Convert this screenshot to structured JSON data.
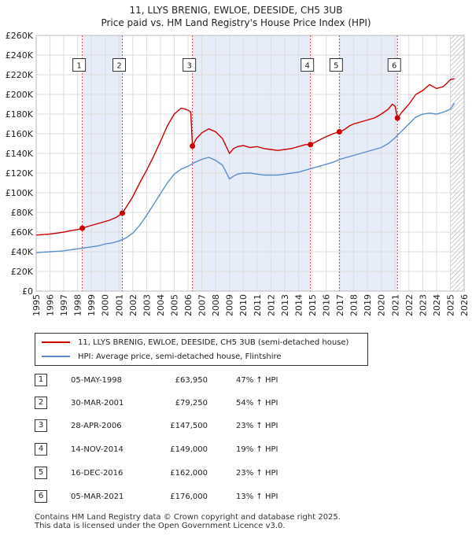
{
  "title_line1": "11, LLYS BRENIG, EWLOE, DEESIDE, CH5 3UB",
  "title_line2": "Price paid vs. HM Land Registry's House Price Index (HPI)",
  "legend": {
    "property_label": "11, LLYS BRENIG, EWLOE, DEESIDE, CH5 3UB (semi-detached house)",
    "hpi_label": "HPI: Average price, semi-detached house, Flintshire"
  },
  "colors": {
    "property": "#cc0000",
    "hpi": "#5b8fcc",
    "shade": "#e6ecf8",
    "marker_line": "#dd4444",
    "grid": "#dddddd",
    "hatch": "#999999"
  },
  "transactions": [
    {
      "num": "1",
      "date": "05-MAY-1998",
      "price": "£63,950",
      "hpi": "47% ↑ HPI"
    },
    {
      "num": "2",
      "date": "30-MAR-2001",
      "price": "£79,250",
      "hpi": "54% ↑ HPI"
    },
    {
      "num": "3",
      "date": "28-APR-2006",
      "price": "£147,500",
      "hpi": "23% ↑ HPI"
    },
    {
      "num": "4",
      "date": "14-NOV-2014",
      "price": "£149,000",
      "hpi": "19% ↑ HPI"
    },
    {
      "num": "5",
      "date": "16-DEC-2016",
      "price": "£162,000",
      "hpi": "23% ↑ HPI"
    },
    {
      "num": "6",
      "date": "05-MAR-2021",
      "price": "£176,000",
      "hpi": "13% ↑ HPI"
    }
  ],
  "footer_line1": "Contains HM Land Registry data © Crown copyright and database right 2025.",
  "footer_line2": "This data is licensed under the Open Government Licence v3.0.",
  "chart_data": {
    "type": "line",
    "xlim": [
      1995,
      2026
    ],
    "ylim": [
      0,
      260000
    ],
    "y_ticks": [
      0,
      20000,
      40000,
      60000,
      80000,
      100000,
      120000,
      140000,
      160000,
      180000,
      200000,
      220000,
      240000,
      260000
    ],
    "y_tick_labels": [
      "£0",
      "£20K",
      "£40K",
      "£60K",
      "£80K",
      "£100K",
      "£120K",
      "£140K",
      "£160K",
      "£180K",
      "£200K",
      "£220K",
      "£240K",
      "£260K"
    ],
    "x_ticks": [
      1995,
      1996,
      1997,
      1998,
      1999,
      2000,
      2001,
      2002,
      2003,
      2004,
      2005,
      2006,
      2007,
      2008,
      2009,
      2010,
      2011,
      2012,
      2013,
      2014,
      2015,
      2016,
      2017,
      2018,
      2019,
      2020,
      2021,
      2022,
      2023,
      2024,
      2025,
      2026
    ],
    "x_tick_labels": [
      "1995",
      "1996",
      "1997",
      "1998",
      "1999",
      "2000",
      "2001",
      "2002",
      "2003",
      "2004",
      "2005",
      "2006",
      "2007",
      "2008",
      "2009",
      "2010",
      "2011",
      "2012",
      "2013",
      "2014",
      "2015",
      "2016",
      "2017",
      "2018",
      "2019",
      "2020",
      "2021",
      "2022",
      "2023",
      "2024",
      "2025",
      "2026"
    ],
    "grid": true,
    "shaded_ranges": [
      [
        1998.34,
        2001.24
      ],
      [
        2006.32,
        2014.87
      ],
      [
        2016.96,
        2021.17
      ]
    ],
    "hatched_from": 2025.0,
    "sales": [
      {
        "label": "1",
        "x": 1998.34,
        "y": 63950
      },
      {
        "label": "2",
        "x": 2001.24,
        "y": 79250
      },
      {
        "label": "3",
        "x": 2006.32,
        "y": 147500
      },
      {
        "label": "4",
        "x": 2014.87,
        "y": 149000
      },
      {
        "label": "5",
        "x": 2016.96,
        "y": 162000
      },
      {
        "label": "6",
        "x": 2021.17,
        "y": 176000
      }
    ],
    "series": [
      {
        "name": "11, LLYS BRENIG, EWLOE, DEESIDE, CH5 3UB (semi-detached house)",
        "x": [
          1995.0,
          1995.5,
          1996.0,
          1996.5,
          1997.0,
          1997.5,
          1998.0,
          1998.34,
          1998.8,
          1999.3,
          1999.8,
          2000.3,
          2000.8,
          2001.24,
          2001.6,
          2002.0,
          2002.5,
          2003.0,
          2003.5,
          2004.0,
          2004.5,
          2005.0,
          2005.5,
          2005.8,
          2006.0,
          2006.2,
          2006.32,
          2006.6,
          2007.0,
          2007.5,
          2008.0,
          2008.5,
          2009.0,
          2009.3,
          2009.6,
          2010.0,
          2010.5,
          2011.0,
          2011.5,
          2012.0,
          2012.5,
          2013.0,
          2013.5,
          2014.0,
          2014.5,
          2014.87,
          2015.3,
          2015.7,
          2016.0,
          2016.5,
          2016.96,
          2017.3,
          2017.7,
          2018.0,
          2018.5,
          2019.0,
          2019.5,
          2020.0,
          2020.5,
          2020.8,
          2021.0,
          2021.17,
          2021.5,
          2022.0,
          2022.5,
          2023.0,
          2023.5,
          2024.0,
          2024.5,
          2024.8,
          2025.0,
          2025.3
        ],
        "y": [
          57000,
          57500,
          58000,
          59000,
          60000,
          61500,
          62500,
          63950,
          66000,
          68000,
          70000,
          72000,
          75000,
          79250,
          87000,
          96000,
          110000,
          123000,
          137000,
          152000,
          168000,
          180000,
          186000,
          185000,
          184000,
          182000,
          147500,
          155000,
          161000,
          165000,
          162000,
          155000,
          140000,
          145000,
          147000,
          148000,
          146000,
          147000,
          145000,
          144000,
          143000,
          144000,
          145000,
          147000,
          149000,
          149000,
          152000,
          155000,
          157000,
          160000,
          162000,
          164000,
          168000,
          170000,
          172000,
          174000,
          176000,
          180000,
          185000,
          190000,
          188000,
          176000,
          182000,
          190000,
          200000,
          204000,
          210000,
          206000,
          208000,
          212000,
          215000,
          216000
        ]
      },
      {
        "name": "HPI: Average price, semi-detached house, Flintshire",
        "x": [
          1995.0,
          1995.5,
          1996.0,
          1996.5,
          1997.0,
          1997.5,
          1998.0,
          1998.5,
          1999.0,
          1999.5,
          2000.0,
          2000.5,
          2001.0,
          2001.5,
          2002.0,
          2002.5,
          2003.0,
          2003.5,
          2004.0,
          2004.5,
          2005.0,
          2005.5,
          2006.0,
          2006.5,
          2007.0,
          2007.5,
          2008.0,
          2008.5,
          2009.0,
          2009.3,
          2009.6,
          2010.0,
          2010.5,
          2011.0,
          2011.5,
          2012.0,
          2012.5,
          2013.0,
          2013.5,
          2014.0,
          2014.5,
          2015.0,
          2015.5,
          2016.0,
          2016.5,
          2017.0,
          2017.5,
          2018.0,
          2018.5,
          2019.0,
          2019.5,
          2020.0,
          2020.5,
          2021.0,
          2021.5,
          2022.0,
          2022.5,
          2023.0,
          2023.5,
          2024.0,
          2024.5,
          2025.0,
          2025.3
        ],
        "y": [
          39000,
          39500,
          40000,
          40500,
          41000,
          42000,
          43000,
          44000,
          45000,
          46000,
          48000,
          49000,
          51000,
          54000,
          59000,
          67000,
          77000,
          88000,
          99000,
          110000,
          119000,
          124000,
          127000,
          131000,
          134000,
          136000,
          133000,
          128000,
          114000,
          117000,
          119000,
          120000,
          120000,
          119000,
          118000,
          118000,
          118000,
          119000,
          120000,
          121000,
          123000,
          125000,
          127000,
          129000,
          131000,
          134000,
          136000,
          138000,
          140000,
          142000,
          144000,
          146000,
          150000,
          156000,
          163000,
          170000,
          177000,
          180000,
          181000,
          180000,
          182000,
          185000,
          191000
        ]
      }
    ]
  }
}
